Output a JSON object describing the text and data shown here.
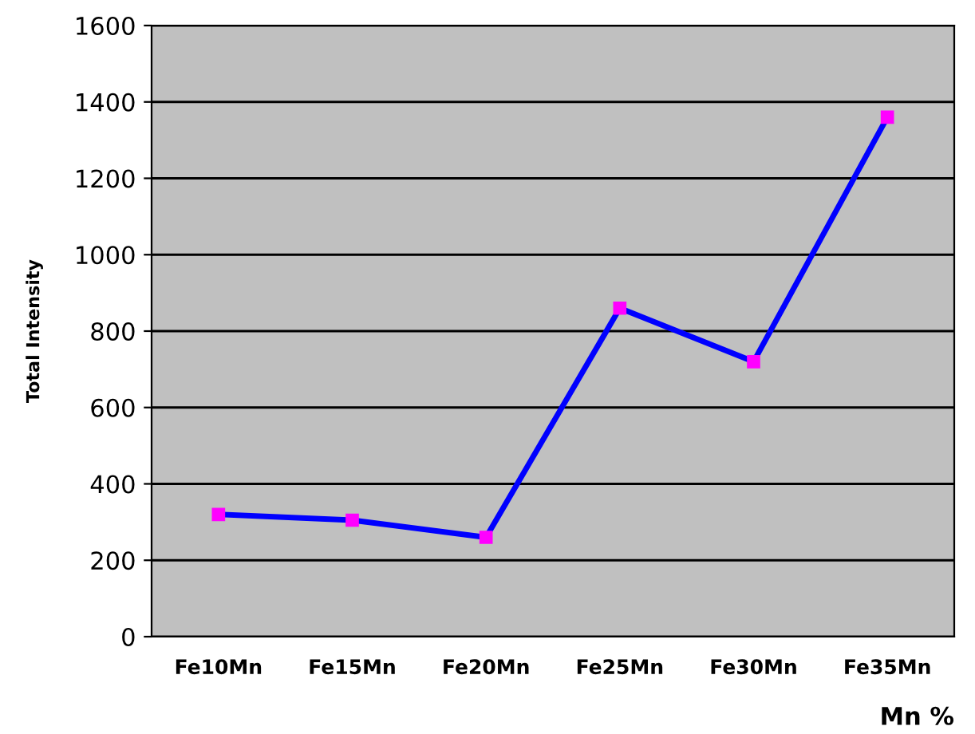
{
  "chart_data": {
    "type": "line",
    "xlabel": "Mn %",
    "ylabel": "Total Intensity",
    "categories": [
      "Fe10Mn",
      "Fe15Mn",
      "Fe20Mn",
      "Fe25Mn",
      "Fe30Mn",
      "Fe35Mn"
    ],
    "series": [
      {
        "color": "#0000ff",
        "values": [
          320,
          305,
          260,
          860,
          720,
          1360
        ]
      }
    ],
    "ylim": [
      0,
      1600
    ],
    "yticks": [
      0,
      200,
      400,
      600,
      800,
      1000,
      1200,
      1400,
      1600
    ],
    "grid": "y",
    "marker": "square",
    "line_style": "solid",
    "legend": false
  }
}
